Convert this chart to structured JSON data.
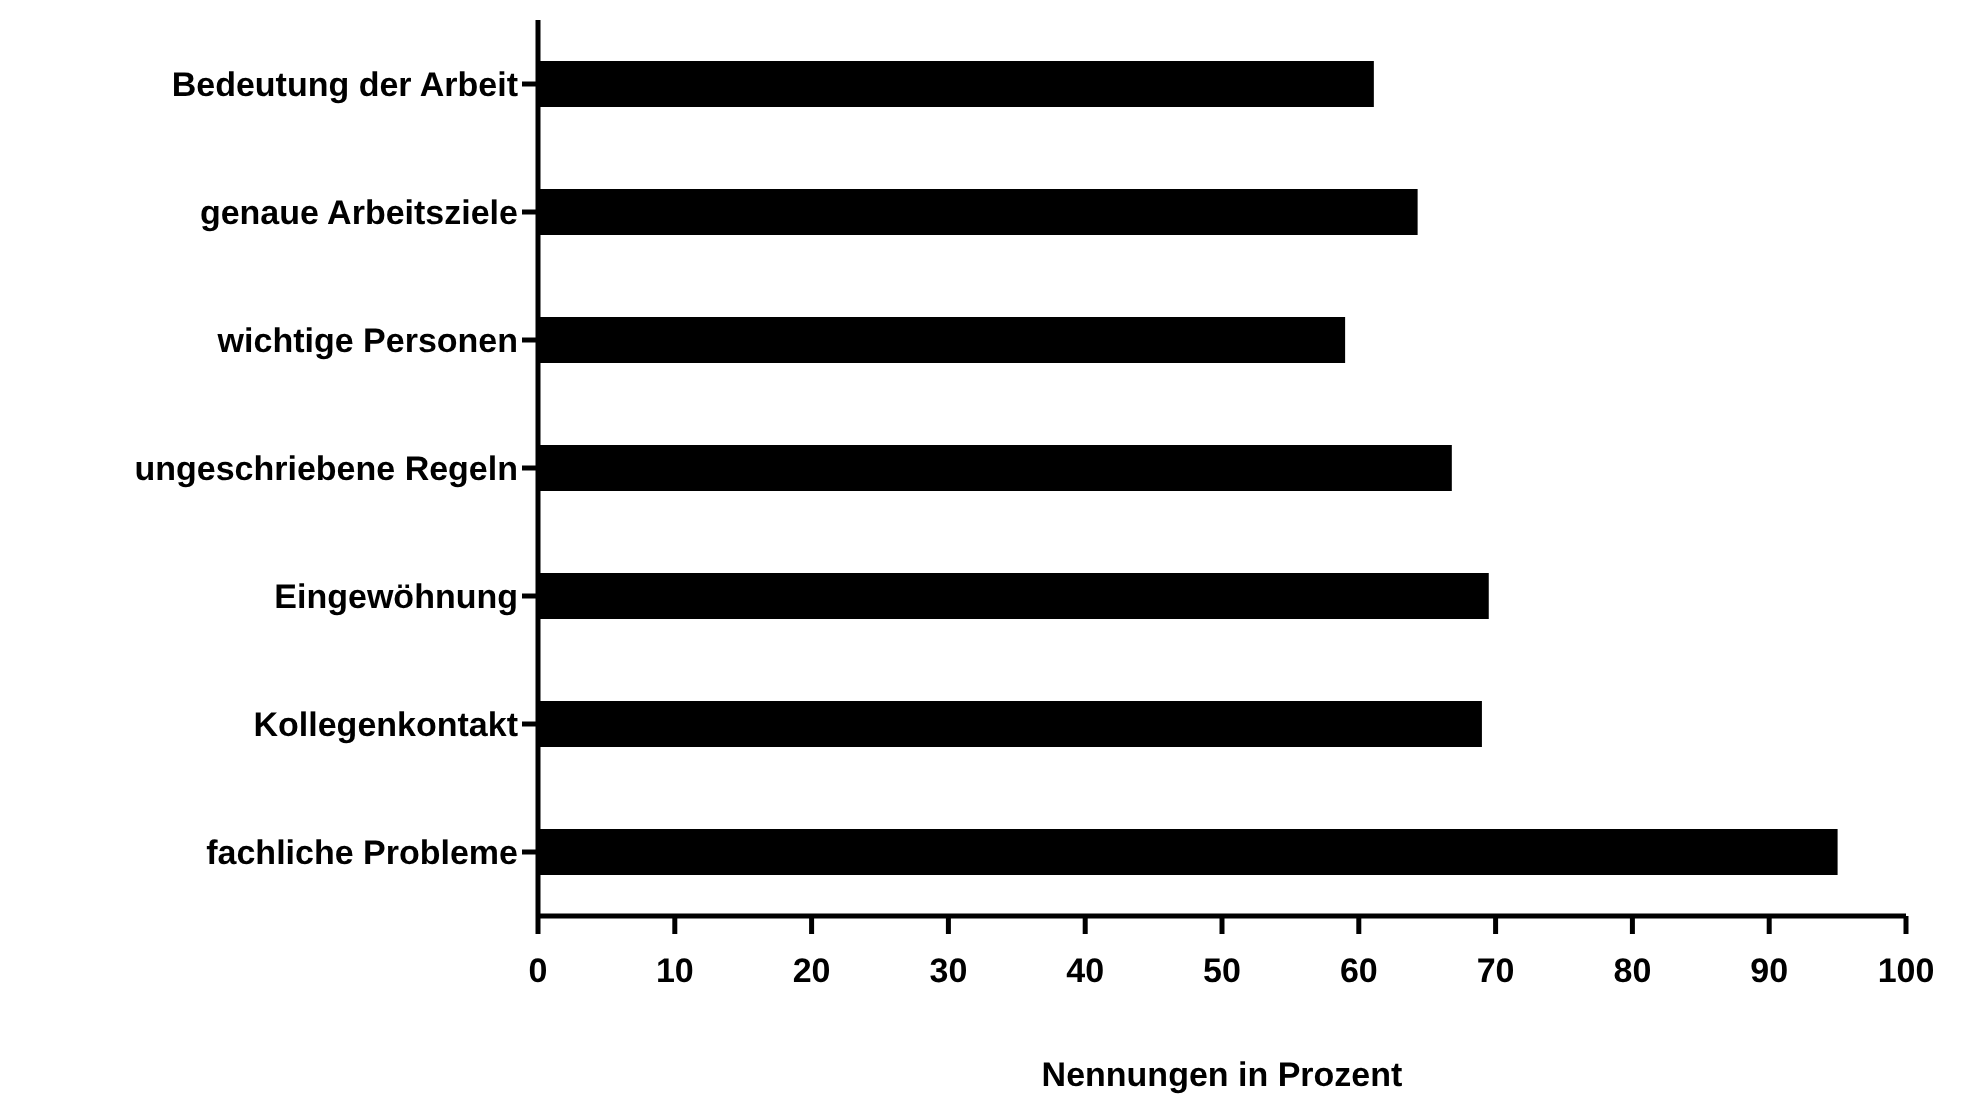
{
  "chart_data": {
    "type": "bar",
    "orientation": "horizontal",
    "xlabel": "Nennungen in Prozent",
    "categories": [
      "Bedeutung der Arbeit",
      "genaue Arbeitsziele",
      "wichtige Personen",
      "ungeschriebene Regeln",
      "Eingewöhnung",
      "Kollegenkontakt",
      "fachliche Probleme"
    ],
    "values": [
      61.1,
      64.3,
      59.0,
      66.8,
      69.5,
      69.0,
      95
    ],
    "color": "#000000",
    "xlim": [
      0,
      100
    ],
    "xticks": [
      0,
      10,
      20,
      30,
      40,
      50,
      60,
      70,
      80,
      90,
      100
    ],
    "grid": false,
    "legend": false
  }
}
